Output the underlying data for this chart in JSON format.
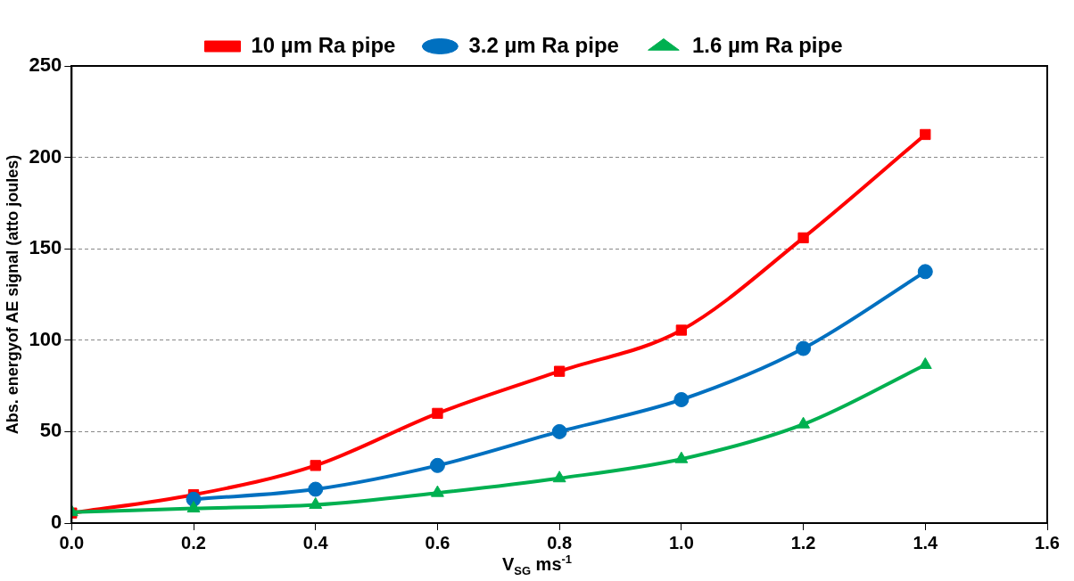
{
  "chart_data": {
    "type": "line",
    "xlabel": "V$_{SG}$ ms$^{-1}$",
    "ylabel": "Abs. energyof AE signal (atto joules)",
    "x": [
      0,
      0.2,
      0.4,
      0.6,
      0.8,
      1.0,
      1.2,
      1.4
    ],
    "xlim": [
      0,
      1.6
    ],
    "xticks": [
      {
        "value": 0,
        "label": "0.0"
      },
      {
        "value": 0.2,
        "label": "0.2"
      },
      {
        "value": 0.4,
        "label": "0.4"
      },
      {
        "value": 0.6,
        "label": "0.6"
      },
      {
        "value": 0.8,
        "label": "0.8"
      },
      {
        "value": 1.0,
        "label": "1.0"
      },
      {
        "value": 1.2,
        "label": "1.2"
      },
      {
        "value": 1.4,
        "label": "1.4"
      },
      {
        "value": 1.6,
        "label": "1.6"
      }
    ],
    "ylim": [
      0,
      250
    ],
    "yticks": [
      0,
      50,
      100,
      150,
      200,
      250
    ],
    "grid": "y",
    "legend": "top",
    "series": [
      {
        "name": "10 µm Ra pipe",
        "color": "#ff0000",
        "marker": "square",
        "values": [
          5.5,
          15.5,
          31.5,
          60,
          83,
          105.5,
          156,
          212.5
        ]
      },
      {
        "name": "3.2 µm Ra pipe",
        "color": "#0070c0",
        "marker": "circle",
        "values": [
          null,
          13,
          18.5,
          31.5,
          50,
          67.5,
          95.5,
          137.5
        ]
      },
      {
        "name": "1.6 µm Ra pipe",
        "color": "#00b050",
        "marker": "triangle",
        "values": [
          6,
          8,
          10,
          16.5,
          24.5,
          35,
          54,
          86.5
        ]
      }
    ]
  }
}
